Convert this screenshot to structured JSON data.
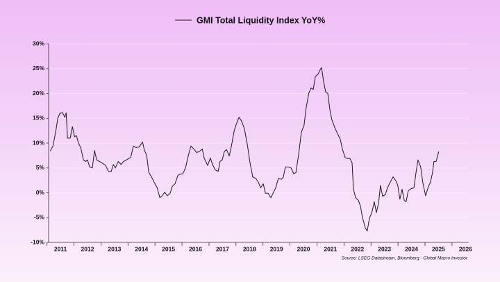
{
  "chart_data": {
    "type": "line",
    "series": [
      {
        "name": "GMI Total Liquidity Index YoY%",
        "color": "#1a1a1a",
        "x": [
          2011.12,
          2011.22,
          2011.32,
          2011.4,
          2011.48,
          2011.58,
          2011.66,
          2011.71,
          2011.76,
          2011.86,
          2011.94,
          2012.02,
          2012.09,
          2012.17,
          2012.25,
          2012.35,
          2012.43,
          2012.5,
          2012.58,
          2012.68,
          2012.76,
          2012.84,
          2012.94,
          2013.04,
          2013.17,
          2013.28,
          2013.38,
          2013.46,
          2013.53,
          2013.64,
          2013.74,
          2013.84,
          2013.97,
          2014.1,
          2014.2,
          2014.3,
          2014.41,
          2014.54,
          2014.61,
          2014.69,
          2014.77,
          2014.87,
          2014.97,
          2015.08,
          2015.18,
          2015.25,
          2015.36,
          2015.46,
          2015.56,
          2015.64,
          2015.74,
          2015.85,
          2015.95,
          2016.03,
          2016.13,
          2016.23,
          2016.33,
          2016.44,
          2016.54,
          2016.64,
          2016.75,
          2016.82,
          2016.95,
          2017.05,
          2017.13,
          2017.23,
          2017.34,
          2017.41,
          2017.49,
          2017.57,
          2017.65,
          2017.75,
          2017.83,
          2017.93,
          2018.01,
          2018.11,
          2018.21,
          2018.31,
          2018.42,
          2018.52,
          2018.62,
          2018.73,
          2018.83,
          2018.91,
          2019.01,
          2019.09,
          2019.19,
          2019.29,
          2019.37,
          2019.47,
          2019.57,
          2019.68,
          2019.75,
          2019.83,
          2019.93,
          2020.04,
          2020.14,
          2020.22,
          2020.32,
          2020.42,
          2020.52,
          2020.6,
          2020.7,
          2020.78,
          2020.86,
          2020.94,
          2021.04,
          2021.12,
          2021.17,
          2021.24,
          2021.32,
          2021.4,
          2021.48,
          2021.55,
          2021.66,
          2021.76,
          2021.86,
          2021.94,
          2022.04,
          2022.12,
          2022.22,
          2022.3,
          2022.35,
          2022.43,
          2022.53,
          2022.61,
          2022.68,
          2022.79,
          2022.86,
          2022.94,
          2023.04,
          2023.12,
          2023.2,
          2023.28,
          2023.35,
          2023.43,
          2023.53,
          2023.61,
          2023.71,
          2023.82,
          2023.92,
          2023.99,
          2024.07,
          2024.15,
          2024.23,
          2024.3,
          2024.38,
          2024.48,
          2024.59,
          2024.66,
          2024.74,
          2024.84,
          2024.92,
          2025.02,
          2025.13,
          2025.2,
          2025.28,
          2025.33,
          2025.41,
          2025.51
        ],
        "values": [
          8.4,
          9.4,
          12.2,
          15,
          16,
          16.1,
          15.2,
          16.1,
          11,
          11,
          13.3,
          11.3,
          11.5,
          9.9,
          9.1,
          6.6,
          6.3,
          6.6,
          5.2,
          5,
          8.5,
          6.6,
          6.3,
          6,
          5.5,
          4.3,
          4.3,
          5.7,
          5,
          6.3,
          5.7,
          6.3,
          6.7,
          7.1,
          9.4,
          9.1,
          9.2,
          10.2,
          8.5,
          7.6,
          4.1,
          3.2,
          2.1,
          1,
          -1,
          -0.7,
          0.1,
          -0.6,
          -0.1,
          1.3,
          1.8,
          3.5,
          3.8,
          3.8,
          5,
          7.4,
          9.4,
          8.8,
          8.1,
          8.3,
          8.8,
          7,
          5.5,
          7,
          5.7,
          4.6,
          4.3,
          6.3,
          6.6,
          8.3,
          8.7,
          7.4,
          9.4,
          12.4,
          13.8,
          15.2,
          14.4,
          12.9,
          9.7,
          6,
          3.2,
          2.9,
          2.1,
          1,
          1.8,
          -0.1,
          -0.1,
          -1,
          -0.1,
          1,
          2.9,
          2.7,
          3.1,
          5.2,
          5.2,
          5,
          3.8,
          4.1,
          7.7,
          12.2,
          13.6,
          17.2,
          20.1,
          21.1,
          20.8,
          23.4,
          23.9,
          24.8,
          25.2,
          22.5,
          20.3,
          20,
          16.6,
          14.7,
          13.1,
          11.9,
          10.8,
          8.8,
          7.1,
          6.9,
          6.9,
          6,
          0.7,
          -1,
          -1.5,
          -2.7,
          -4.9,
          -7.1,
          -7.7,
          -5.2,
          -3.8,
          -1.8,
          -4,
          -2.1,
          1.5,
          -0.7,
          -0.4,
          1,
          2.1,
          3.2,
          2.4,
          1.5,
          -1.3,
          0.7,
          -1.5,
          -1.8,
          0.4,
          0.8,
          1,
          3.8,
          6.6,
          5.2,
          2,
          -0.6,
          1.3,
          2.1,
          4.1,
          6.3,
          6.3,
          8.3
        ]
      }
    ],
    "xlim": [
      2011.06,
      2026.62
    ],
    "xticks": [
      2011,
      2012,
      2013,
      2014,
      2015,
      2016,
      2017,
      2018,
      2019,
      2020,
      2021,
      2022,
      2023,
      2024,
      2025,
      2026
    ],
    "ylim": [
      -10,
      30
    ],
    "yticks": [
      {
        "value": -10,
        "label": "-10%"
      },
      {
        "value": -5,
        "label": "-5%"
      },
      {
        "value": 0,
        "label": "0%"
      },
      {
        "value": 5,
        "label": "5%"
      },
      {
        "value": 10,
        "label": "10%"
      },
      {
        "value": 15,
        "label": "15%"
      },
      {
        "value": 20,
        "label": "20%"
      },
      {
        "value": 25,
        "label": "25%"
      },
      {
        "value": 30,
        "label": "30%"
      }
    ],
    "grid": true,
    "legend": "top",
    "source": "Source: LSEG Datastream, Bloomberg - Global Macro Investor"
  }
}
